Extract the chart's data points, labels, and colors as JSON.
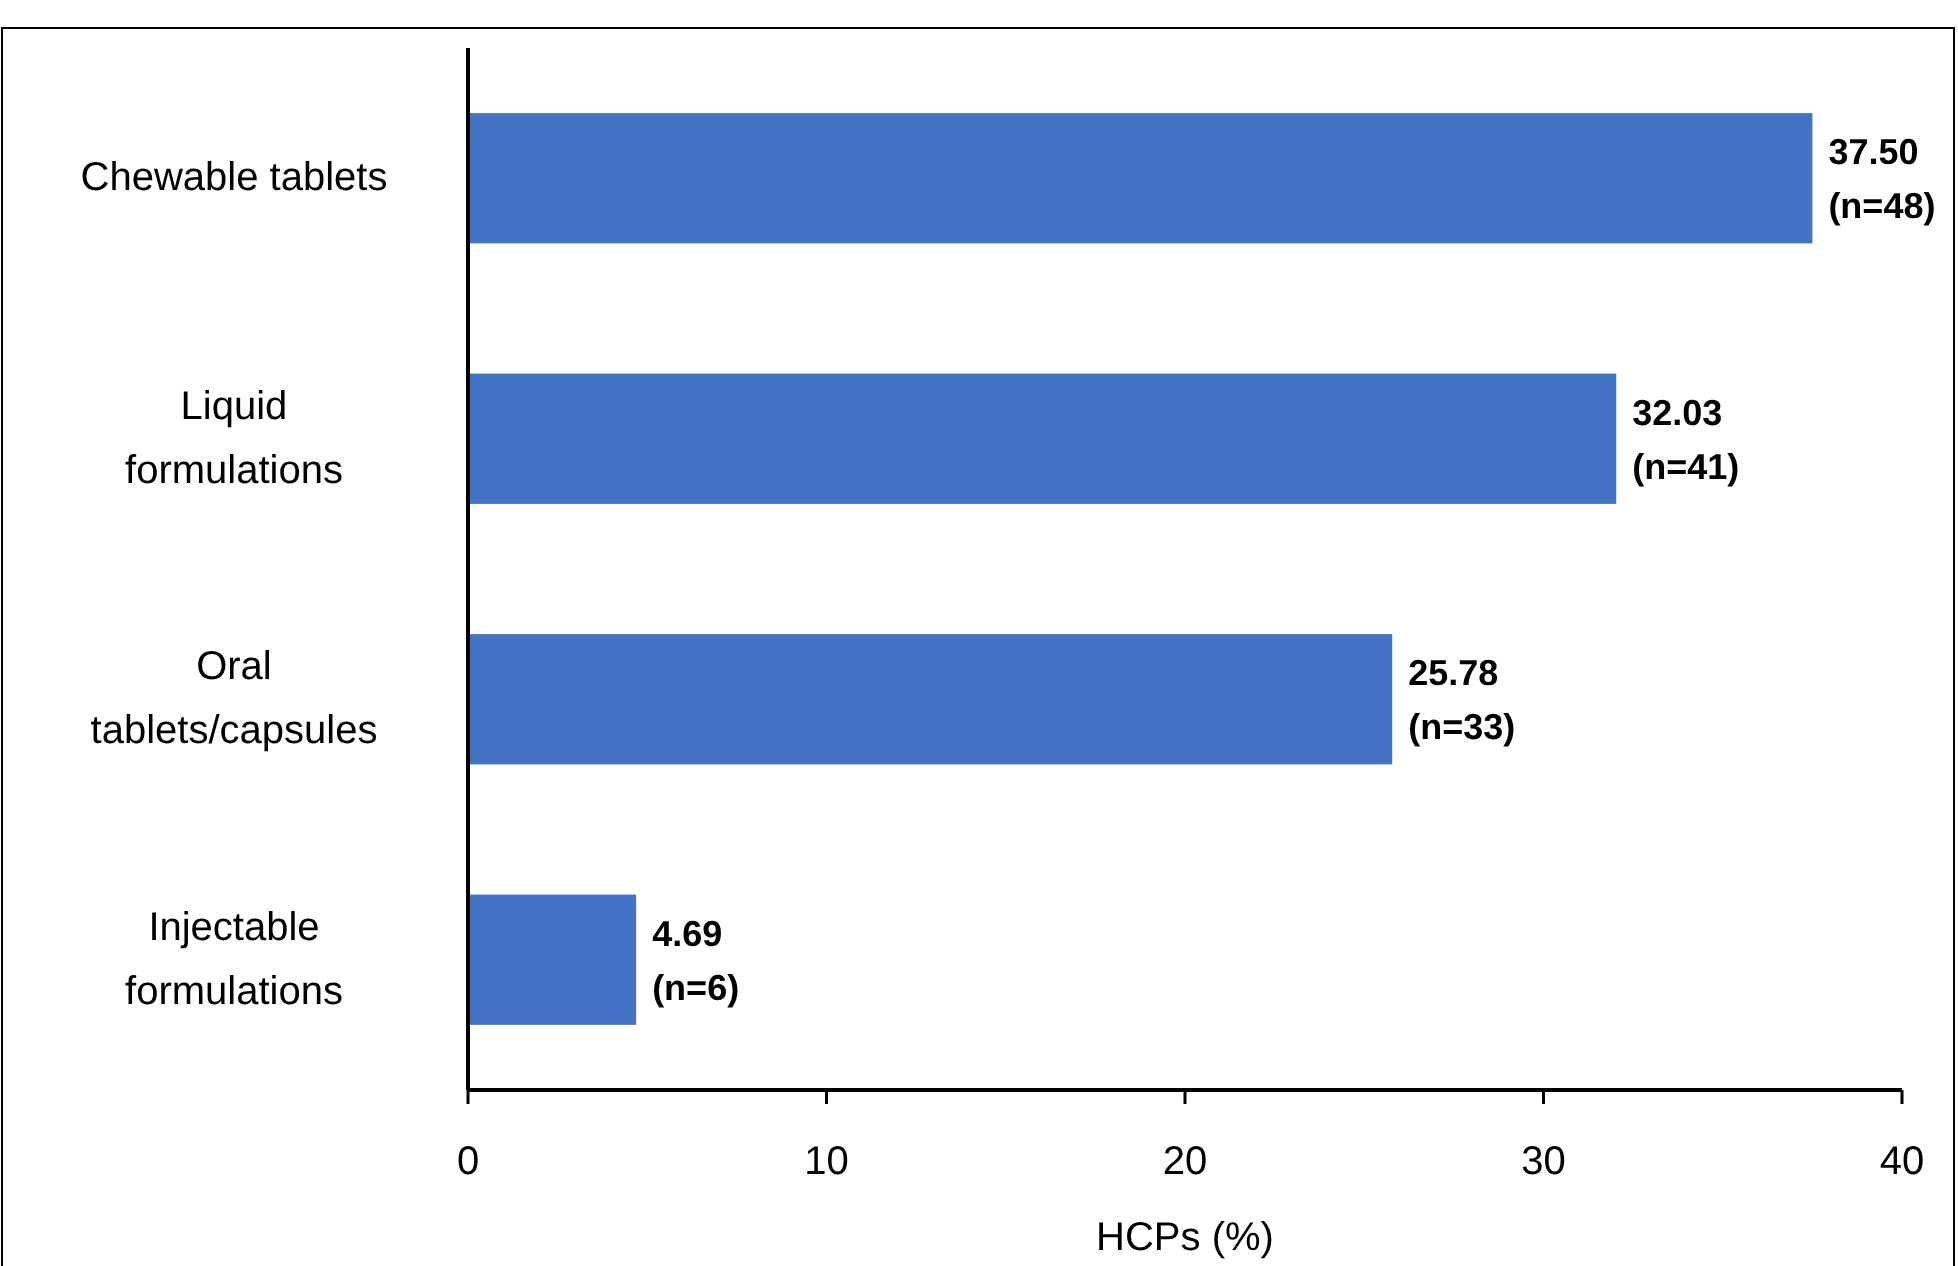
{
  "chart_data": {
    "type": "bar",
    "orientation": "horizontal",
    "xlabel": "HCPs (%)",
    "categories": [
      "Chewable tablets",
      "Liquid formulations",
      "Oral tablets/capsules",
      "Injectable formulations"
    ],
    "values": [
      37.5,
      32.03,
      25.78,
      4.69
    ],
    "value_labels": [
      "37.50\n(n=48)",
      "32.03\n(n=41)",
      "25.78\n(n=33)",
      "4.69\n(n=6)"
    ],
    "color": "#4472c4",
    "xlim": [
      0,
      40
    ],
    "xticks": [
      0,
      10,
      20,
      30,
      40
    ],
    "grid": false
  }
}
